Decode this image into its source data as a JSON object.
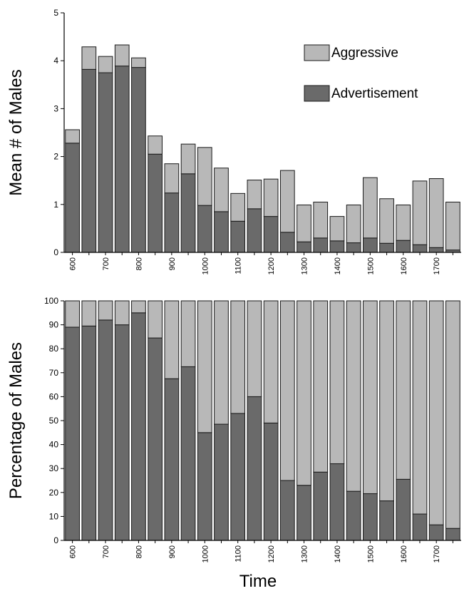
{
  "colors": {
    "aggressive": "#b8b8b8",
    "advertisement": "#6a6a6a",
    "bar_outline": "#1a1a1a",
    "axis": "#000000"
  },
  "shared": {
    "xlabel": "Time",
    "x_tick_labels": [
      "600",
      "700",
      "800",
      "900",
      "1000",
      "1100",
      "1200",
      "1300",
      "1400",
      "1500",
      "1600",
      "1700"
    ]
  },
  "chart_data": [
    {
      "type": "bar",
      "stacked": true,
      "title": "",
      "xlabel": "Time",
      "ylabel": "Mean # of Males",
      "ylim": [
        0,
        5
      ],
      "yticks": [
        0,
        1,
        2,
        3,
        4,
        5
      ],
      "x": [
        600,
        630,
        700,
        730,
        800,
        830,
        900,
        930,
        1000,
        1030,
        1100,
        1130,
        1200,
        1230,
        1300,
        1330,
        1400,
        1430,
        1500,
        1530,
        1600,
        1630,
        1700,
        1730
      ],
      "legend": {
        "position": "top-right",
        "entries": [
          "Aggressive",
          "Advertisement"
        ]
      },
      "series": [
        {
          "name": "Advertisement",
          "values": [
            2.28,
            3.82,
            3.75,
            3.89,
            3.86,
            2.05,
            1.24,
            1.64,
            0.98,
            0.85,
            0.65,
            0.91,
            0.75,
            0.42,
            0.22,
            0.3,
            0.24,
            0.2,
            0.3,
            0.19,
            0.25,
            0.16,
            0.1,
            0.05
          ]
        },
        {
          "name": "Aggressive",
          "values": [
            0.28,
            0.47,
            0.34,
            0.44,
            0.2,
            0.38,
            0.61,
            0.62,
            1.21,
            0.91,
            0.58,
            0.6,
            0.78,
            1.29,
            0.77,
            0.75,
            0.51,
            0.79,
            1.26,
            0.93,
            0.74,
            1.33,
            1.44,
            1.0
          ]
        }
      ]
    },
    {
      "type": "bar",
      "stacked": true,
      "title": "",
      "xlabel": "Time",
      "ylabel": "Percentage of Males",
      "ylim": [
        0,
        100
      ],
      "yticks": [
        0,
        10,
        20,
        30,
        40,
        50,
        60,
        70,
        80,
        90,
        100
      ],
      "x": [
        600,
        630,
        700,
        730,
        800,
        830,
        900,
        930,
        1000,
        1030,
        1100,
        1130,
        1200,
        1230,
        1300,
        1330,
        1400,
        1430,
        1500,
        1530,
        1600,
        1630,
        1700,
        1730
      ],
      "series": [
        {
          "name": "Advertisement",
          "values": [
            89,
            89.5,
            92,
            90,
            95,
            84.5,
            67.5,
            72.5,
            45,
            48.5,
            53,
            60,
            49,
            25,
            23,
            28.5,
            32,
            20.5,
            19.5,
            16.5,
            25.5,
            11,
            6.5,
            5
          ]
        },
        {
          "name": "Aggressive",
          "values": [
            11,
            10.5,
            8,
            10,
            5,
            15.5,
            32.5,
            27.5,
            55,
            51.5,
            47,
            40,
            51,
            75,
            77,
            71.5,
            68,
            79.5,
            80.5,
            83.5,
            74.5,
            89,
            93.5,
            95
          ]
        }
      ]
    }
  ]
}
